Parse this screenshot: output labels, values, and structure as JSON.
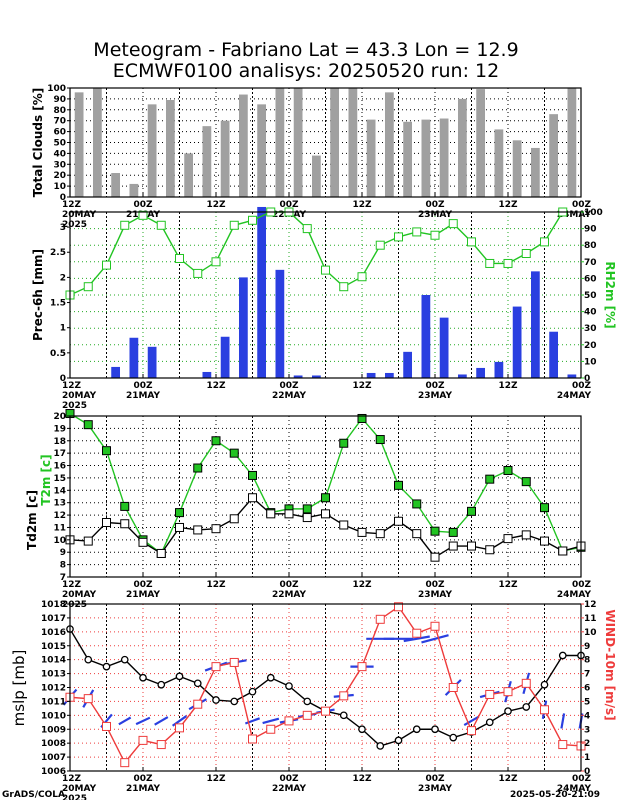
{
  "title_line1": "Meteogram - Fabriano Lat = 43.3 Lon = 12.9",
  "title_line2": "ECMWF0100 analisys: 20250520 run: 12",
  "footer_left": "GrADS/COLA",
  "footer_right": "2025-05-20-21:09",
  "colors": {
    "bars_gray": "#a0a0a0",
    "bars_blue": "#2a3fe0",
    "green": "#22c422",
    "red": "#ee3b3b",
    "black": "#000000",
    "wind_blue": "#2a3fe0",
    "tick_orange": "#dd6a00"
  },
  "chart_data": [
    {
      "type": "bar",
      "ylabel": "Total Clouds [%]",
      "ylim": [
        0,
        100
      ],
      "yticks": [
        0,
        10,
        20,
        30,
        40,
        50,
        60,
        70,
        80,
        90,
        100
      ],
      "xtick_labels": [
        "12Z 20MAY",
        "00Z 21MAY",
        "12Z",
        "00Z 22MAY",
        "12Z",
        "00Z 23MAY",
        "12Z",
        "00Z 24MAY"
      ],
      "x_start_label": "2025",
      "series": [
        {
          "values": [
            96,
            100,
            22,
            12,
            85,
            89,
            40,
            65,
            70,
            94,
            85,
            100,
            100,
            38,
            100,
            100,
            71,
            96,
            69,
            71,
            72,
            90,
            99,
            62,
            52,
            45,
            76,
            100
          ]
        }
      ]
    },
    {
      "type": "bar+line",
      "ylabel": "Prec-6h [mm]",
      "ylabel_right": "RH2m [%]",
      "ylim": [
        0,
        3.3
      ],
      "yticks": [
        0,
        0.5,
        1,
        1.5,
        2,
        2.5,
        3
      ],
      "y2lim": [
        0,
        100
      ],
      "y2ticks": [
        0,
        10,
        20,
        30,
        40,
        50,
        60,
        70,
        80,
        90,
        100
      ],
      "xtick_labels": [
        "12Z 20MAY",
        "00Z 21MAY",
        "12Z",
        "00Z 22MAY",
        "12Z",
        "00Z 23MAY",
        "12Z",
        "00Z 24MAY"
      ],
      "x_start_label": "2025",
      "precip": [
        0,
        0,
        0.22,
        0.8,
        0.62,
        0,
        0,
        0.12,
        0.82,
        2.0,
        3.4,
        2.15,
        0.05,
        0.05,
        0,
        0,
        0.1,
        0.1,
        0.52,
        1.65,
        1.2,
        0.07,
        0.2,
        0.32,
        1.42,
        2.12,
        0.92,
        0.07
      ],
      "rh": [
        50,
        55,
        68,
        92,
        98,
        92,
        72,
        63,
        70,
        92,
        95,
        100,
        100,
        90,
        65,
        55,
        61,
        80,
        85,
        88,
        86,
        93,
        82,
        69,
        69,
        75,
        82,
        100
      ]
    },
    {
      "type": "line",
      "ylabel": "Td2m [c]",
      "ylabel_green": "T2m [c]",
      "ylim": [
        7,
        20
      ],
      "yticks": [
        7,
        8,
        9,
        10,
        11,
        12,
        13,
        14,
        15,
        16,
        17,
        18,
        19,
        20
      ],
      "xtick_labels": [
        "12Z 20MAY",
        "00Z 21MAY",
        "12Z",
        "00Z 22MAY",
        "12Z",
        "00Z 23MAY",
        "12Z",
        "00Z 24MAY"
      ],
      "x_start_label": "2025",
      "series": [
        {
          "values": [
            20.2,
            19.3,
            17.2,
            12.7,
            10.0,
            8.9,
            12.2,
            15.8,
            18.0,
            17.0,
            15.2,
            12.2,
            12.5,
            12.5,
            13.4,
            17.8,
            19.8,
            18.1,
            14.4,
            12.9,
            10.7,
            10.6,
            12.3,
            14.9,
            15.6,
            14.7,
            12.6,
            9.1,
            9.4
          ]
        },
        {
          "values": [
            10.0,
            9.9,
            11.4,
            11.3,
            9.8,
            8.9,
            11.0,
            10.8,
            10.9,
            11.7,
            13.4,
            12.1,
            12.1,
            11.8,
            12.1,
            11.2,
            10.6,
            10.5,
            11.5,
            10.5,
            8.6,
            9.5,
            9.5,
            9.2,
            10.1,
            10.4,
            9.9,
            9.1,
            9.5
          ]
        }
      ]
    },
    {
      "type": "line",
      "ylabel": "mslp [mb]",
      "ylabel_right": "WIND-10m [m/s]",
      "ylim": [
        1006,
        1018
      ],
      "yticks": [
        1006,
        1007,
        1008,
        1009,
        1010,
        1011,
        1012,
        1013,
        1014,
        1015,
        1016,
        1017,
        1018
      ],
      "y2lim": [
        0,
        12
      ],
      "y2ticks": [
        0,
        1,
        2,
        3,
        4,
        5,
        6,
        7,
        8,
        9,
        10,
        11,
        12
      ],
      "xtick_labels": [
        "12Z 20MAY",
        "00Z 21MAY",
        "12Z",
        "00Z 22MAY",
        "12Z",
        "00Z 23MAY",
        "12Z",
        "00Z 24MAY"
      ],
      "x_start_label": "2025",
      "series": [
        {
          "values": [
            1016.2,
            1014.0,
            1013.5,
            1014.0,
            1012.7,
            1012.2,
            1012.8,
            1012.3,
            1011.1,
            1011.0,
            1011.7,
            1012.7,
            1012.1,
            1011.0,
            1010.3,
            1010.0,
            1009.0,
            1007.8,
            1008.2,
            1009.0,
            1009.0,
            1008.4,
            1008.8,
            1009.5,
            1010.3,
            1010.6,
            1012.2,
            1014.3,
            1014.3
          ]
        },
        {
          "values": [
            5.3,
            5.2,
            3.2,
            0.6,
            2.2,
            1.9,
            3.1,
            4.8,
            7.5,
            7.8,
            2.3,
            3.0,
            3.6,
            4.0,
            4.3,
            5.4,
            7.5,
            10.9,
            11.8,
            9.9,
            10.4,
            6.0,
            2.9,
            5.5,
            5.7,
            6.3,
            4.4,
            1.9,
            1.8
          ]
        }
      ],
      "wind_barbs": [
        {
          "dir": 40,
          "speed": 5
        },
        {
          "dir": 30,
          "speed": 5
        },
        {
          "dir": 40,
          "speed": 3
        },
        {
          "dir": 60,
          "speed": 1
        },
        {
          "dir": 65,
          "speed": 2
        },
        {
          "dir": 60,
          "speed": 2
        },
        {
          "dir": 55,
          "speed": 3
        },
        {
          "dir": 60,
          "speed": 5
        },
        {
          "dir": 70,
          "speed": 7
        },
        {
          "dir": 80,
          "speed": 8
        },
        {
          "dir": 70,
          "speed": 2
        },
        {
          "dir": 75,
          "speed": 3
        },
        {
          "dir": 80,
          "speed": 4
        },
        {
          "dir": 80,
          "speed": 4
        },
        {
          "dir": 80,
          "speed": 4
        },
        {
          "dir": 85,
          "speed": 5
        },
        {
          "dir": 90,
          "speed": 7
        },
        {
          "dir": 90,
          "speed": 10
        },
        {
          "dir": 90,
          "speed": 11
        },
        {
          "dir": 80,
          "speed": 9
        },
        {
          "dir": 75,
          "speed": 10
        },
        {
          "dir": 45,
          "speed": 6
        },
        {
          "dir": 60,
          "speed": 3
        },
        {
          "dir": 75,
          "speed": 5
        },
        {
          "dir": 15,
          "speed": 6
        },
        {
          "dir": 15,
          "speed": 6
        },
        {
          "dir": 10,
          "speed": 4
        },
        {
          "dir": 10,
          "speed": 2
        },
        {
          "dir": 10,
          "speed": 2
        }
      ]
    }
  ]
}
